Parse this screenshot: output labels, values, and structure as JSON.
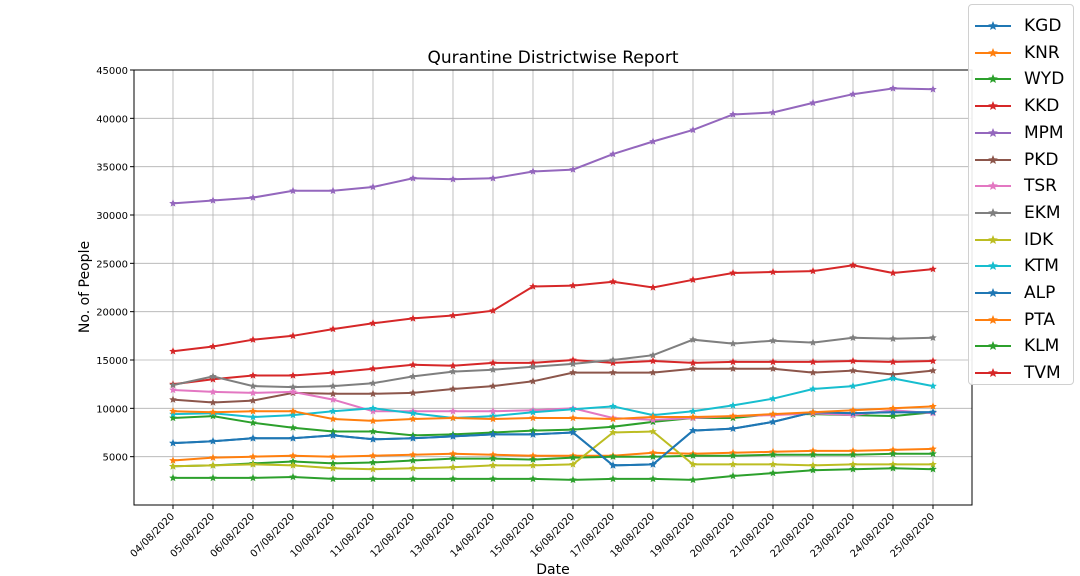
{
  "chart_data": {
    "type": "line",
    "title": "Qurantine Districtwise Report",
    "xlabel": "Date",
    "ylabel": "No. of People",
    "ylim": [
      0,
      45000
    ],
    "yticks": [
      5000,
      10000,
      15000,
      20000,
      25000,
      30000,
      35000,
      40000,
      45000
    ],
    "grid": true,
    "legend_position": "upper-right-outside",
    "marker": "star",
    "categories": [
      "04/08/2020",
      "05/08/2020",
      "06/08/2020",
      "07/08/2020",
      "10/08/2020",
      "11/08/2020",
      "12/08/2020",
      "13/08/2020",
      "14/08/2020",
      "15/08/2020",
      "16/08/2020",
      "17/08/2020",
      "18/08/2020",
      "19/08/2020",
      "20/08/2020",
      "21/08/2020",
      "22/08/2020",
      "23/08/2020",
      "24/08/2020",
      "25/08/2020"
    ],
    "series": [
      {
        "name": "KGD",
        "color": "#1f77b4",
        "values": [
          6400,
          6600,
          6900,
          6900,
          7200,
          6800,
          6900,
          7100,
          7300,
          7300,
          7500,
          4100,
          4200,
          7700,
          7900,
          8600,
          9600,
          9500,
          9600,
          9600
        ]
      },
      {
        "name": "KNR",
        "color": "#ff7f0e",
        "values": [
          4600,
          4900,
          5000,
          5100,
          5000,
          5100,
          5200,
          5300,
          5200,
          5100,
          5100,
          5100,
          5400,
          5300,
          5400,
          5500,
          5600,
          5600,
          5700,
          5800
        ]
      },
      {
        "name": "WYD",
        "color": "#2ca02c",
        "values": [
          4000,
          4100,
          4300,
          4500,
          4300,
          4400,
          4600,
          4800,
          4800,
          4700,
          4900,
          5000,
          5000,
          5100,
          5100,
          5200,
          5200,
          5200,
          5300,
          5300
        ]
      },
      {
        "name": "KKD",
        "color": "#d62728",
        "values": [
          12500,
          13000,
          13400,
          13400,
          13700,
          14100,
          14500,
          14400,
          14700,
          14700,
          15000,
          14700,
          14900,
          14700,
          14800,
          14800,
          14800,
          14900,
          14800,
          14900
        ]
      },
      {
        "name": "MPM",
        "color": "#9467bd",
        "values": [
          31200,
          31500,
          31800,
          32500,
          32500,
          32900,
          33800,
          33700,
          33800,
          34500,
          34700,
          36300,
          37600,
          38800,
          40400,
          40600,
          41600,
          42500,
          43100,
          43000
        ]
      },
      {
        "name": "PKD",
        "color": "#8c564b",
        "values": [
          10900,
          10600,
          10800,
          11600,
          11500,
          11500,
          11600,
          12000,
          12300,
          12800,
          13700,
          13700,
          13700,
          14100,
          14100,
          14100,
          13700,
          13900,
          13500,
          13900
        ]
      },
      {
        "name": "TSR",
        "color": "#e377c2",
        "values": [
          11900,
          11700,
          11600,
          11700,
          10900,
          9700,
          9700,
          9700,
          9700,
          9800,
          10000,
          9000,
          8800,
          9000,
          9200,
          9300,
          9500,
          9300,
          9800,
          9500
        ]
      },
      {
        "name": "EKM",
        "color": "#7f7f7f",
        "values": [
          12400,
          13300,
          12300,
          12200,
          12300,
          12600,
          13300,
          13800,
          14000,
          14300,
          14600,
          15000,
          15500,
          17100,
          16700,
          17000,
          16800,
          17300,
          17200,
          17300
        ]
      },
      {
        "name": "IDK",
        "color": "#bcbd22",
        "values": [
          4000,
          4100,
          4200,
          4100,
          3800,
          3700,
          3800,
          3900,
          4100,
          4100,
          4200,
          7500,
          7600,
          4200,
          4200,
          4200,
          4100,
          4200,
          4200,
          4200
        ]
      },
      {
        "name": "KTM",
        "color": "#17becf",
        "values": [
          9400,
          9500,
          9100,
          9300,
          9700,
          10000,
          9500,
          9000,
          9200,
          9600,
          9900,
          10200,
          9300,
          9700,
          10300,
          11000,
          12000,
          12300,
          13100,
          12300
        ]
      },
      {
        "name": "ALP",
        "color": "#1f77b4",
        "values": [
          6400,
          6600,
          6900,
          6900,
          7200,
          6800,
          6900,
          7100,
          7300,
          7300,
          7500,
          4100,
          4200,
          7700,
          7900,
          8600,
          9600,
          9500,
          9600,
          9600
        ]
      },
      {
        "name": "PTA",
        "color": "#ff7f0e",
        "values": [
          9700,
          9600,
          9700,
          9700,
          8900,
          8700,
          8900,
          9000,
          8900,
          9000,
          9000,
          8900,
          9100,
          9100,
          9200,
          9400,
          9600,
          9800,
          10000,
          10200
        ]
      },
      {
        "name": "KLM",
        "color": "#2ca02c",
        "values": [
          2800,
          2800,
          2800,
          2900,
          2700,
          2700,
          2700,
          2700,
          2700,
          2700,
          2600,
          2700,
          2700,
          2600,
          3000,
          3300,
          3600,
          3700,
          3800,
          3700
        ]
      },
      {
        "name": "TVM",
        "color": "#d62728",
        "values": [
          15900,
          16400,
          17100,
          17500,
          18200,
          18800,
          19300,
          19600,
          20100,
          22600,
          22700,
          23100,
          22500,
          23300,
          24000,
          24100,
          24200,
          24800,
          24000,
          24400
        ]
      }
    ]
  },
  "extra_series": [
    {
      "color": "#2ca02c",
      "values": [
        9000,
        9200,
        8500,
        8000,
        7600,
        7600,
        7200,
        7300,
        7500,
        7700,
        7800,
        8100,
        8600,
        9000,
        9000,
        9400,
        9400,
        9300,
        9200,
        9600
      ]
    }
  ]
}
